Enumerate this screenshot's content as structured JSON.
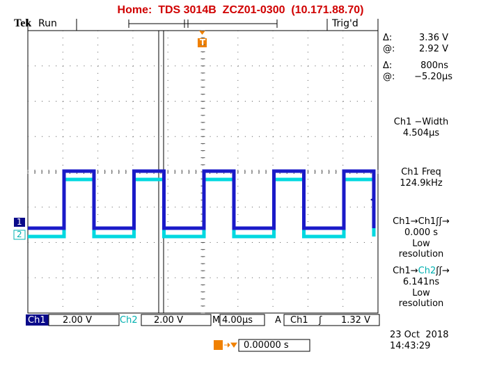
{
  "header": {
    "title": "Home:  TDS 3014B  ZCZ01-0300  (10.171.88.70)",
    "brand": "Tek",
    "state": "Run",
    "trigger_status": "Trig'd",
    "trigger_marker": "T"
  },
  "cursors": {
    "v_delta_label": "Δ:",
    "v_delta": "3.36 V",
    "v_at_label": "@:",
    "v_at": "2.92 V",
    "t_delta_label": "Δ:",
    "t_delta": "800ns",
    "t_at_label": "@:",
    "t_at": "−5.20µs"
  },
  "measurements": [
    {
      "label": "Ch1 −Width",
      "value": "4.504µs"
    },
    {
      "label": "Ch1 Freq",
      "value": "124.9kHz"
    },
    {
      "label_parts": [
        "Ch1→Ch1",
        "ʃʃ→"
      ],
      "value": "0.000 s",
      "note": [
        "Low",
        "resolution"
      ]
    },
    {
      "label_parts": [
        "Ch1→",
        "Ch2",
        "ʃʃ→"
      ],
      "value": "6.141ns",
      "note": [
        "Low",
        "resolution"
      ]
    }
  ],
  "channel_markers": [
    "1",
    "2"
  ],
  "status_bar": {
    "ch1": "Ch1",
    "ch1_scale": "2.00 V",
    "ch2": "Ch2",
    "ch2_scale": "2.00 V",
    "time_label": "M",
    "time_scale": "4.00µs",
    "trigger_label": "A",
    "trigger_source": "Ch1",
    "trigger_slope": "ʃ",
    "trigger_level": "1.32 V"
  },
  "trigger_position": {
    "marker": "T",
    "value": "0.00000 s"
  },
  "datetime": {
    "date": "23 Oct  2018",
    "time": "14:43:29"
  }
}
